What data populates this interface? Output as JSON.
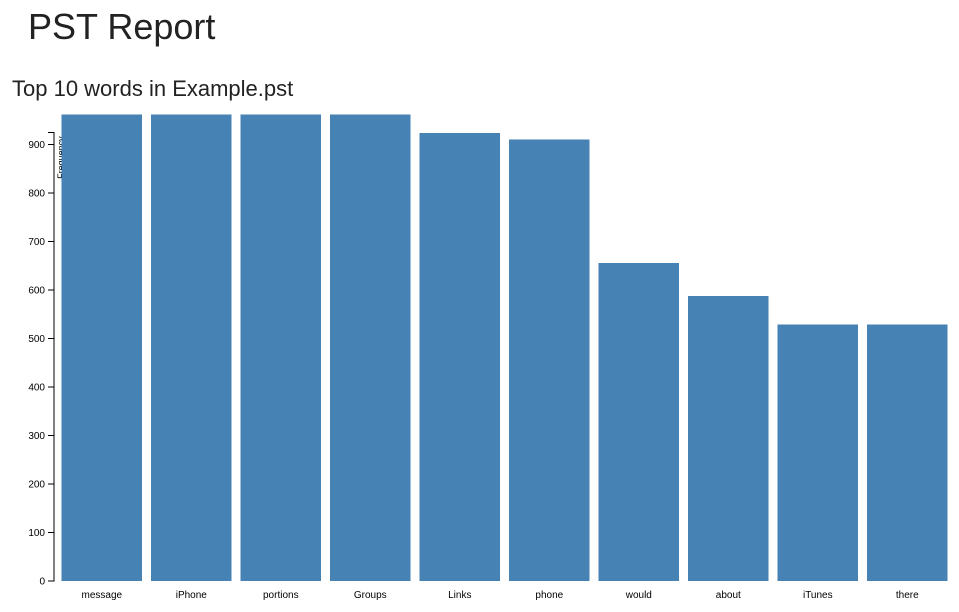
{
  "page": {
    "title": "PST Report"
  },
  "chart_data": {
    "type": "bar",
    "title": "Top 10 words in Example.pst",
    "xlabel": "",
    "ylabel": "Frequency",
    "categories": [
      "message",
      "iPhone",
      "portions",
      "Groups",
      "Links",
      "phone",
      "would",
      "about",
      "iTunes",
      "there"
    ],
    "values": [
      962,
      962,
      962,
      962,
      924,
      910,
      656,
      588,
      529,
      529
    ],
    "ylim": [
      0,
      925
    ],
    "yticks": [
      0,
      100,
      200,
      300,
      400,
      500,
      600,
      700,
      800,
      900
    ],
    "bar_color": "#4682b4",
    "grid": false,
    "legend": "none"
  }
}
